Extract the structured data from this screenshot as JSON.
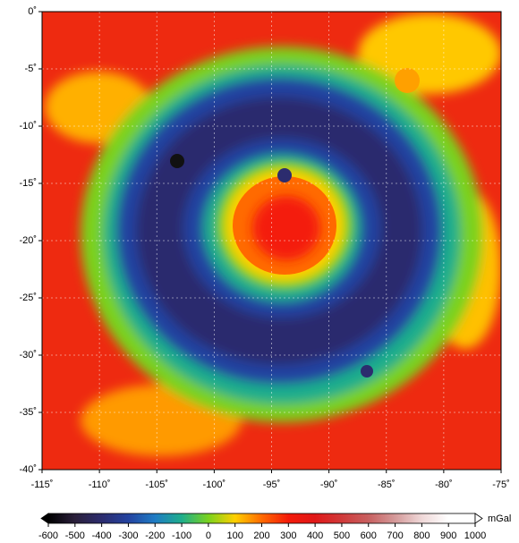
{
  "map": {
    "xlim": [
      -115,
      -75
    ],
    "ylim": [
      -40,
      0
    ],
    "xticks": [
      {
        "value": -115,
        "label": "-115˚"
      },
      {
        "value": -110,
        "label": "-110˚"
      },
      {
        "value": -105,
        "label": "-105˚"
      },
      {
        "value": -100,
        "label": "-100˚"
      },
      {
        "value": -95,
        "label": "-95˚"
      },
      {
        "value": -90,
        "label": "-90˚"
      },
      {
        "value": -85,
        "label": "-85˚"
      },
      {
        "value": -80,
        "label": "-80˚"
      },
      {
        "value": -75,
        "label": "-75˚"
      }
    ],
    "yticks": [
      {
        "value": 0,
        "label": "0˚"
      },
      {
        "value": -5,
        "label": "-5˚"
      },
      {
        "value": -10,
        "label": "-10˚"
      },
      {
        "value": -15,
        "label": "-15˚"
      },
      {
        "value": -20,
        "label": "-20˚"
      },
      {
        "value": -25,
        "label": "-25˚"
      },
      {
        "value": -30,
        "label": "-30˚"
      },
      {
        "value": -35,
        "label": "-35˚"
      },
      {
        "value": -40,
        "label": "-40˚"
      }
    ],
    "colorbar": {
      "unit": "mGal",
      "clim": [
        -600,
        1000
      ],
      "ticks": [
        -600,
        -500,
        -400,
        -300,
        -200,
        -100,
        0,
        100,
        200,
        300,
        400,
        500,
        600,
        700,
        800,
        900,
        1000
      ],
      "colors": [
        "#000000",
        "#2a1f3a",
        "#2c2c6e",
        "#2443a0",
        "#1f7cc4",
        "#1fae8c",
        "#7ad21e",
        "#ffd000",
        "#ff6a00",
        "#f41a0a",
        "#e01818",
        "#d03a3a",
        "#c86060",
        "#d49a9a",
        "#efd8d8",
        "#ffffff",
        "#ffffff"
      ]
    }
  }
}
